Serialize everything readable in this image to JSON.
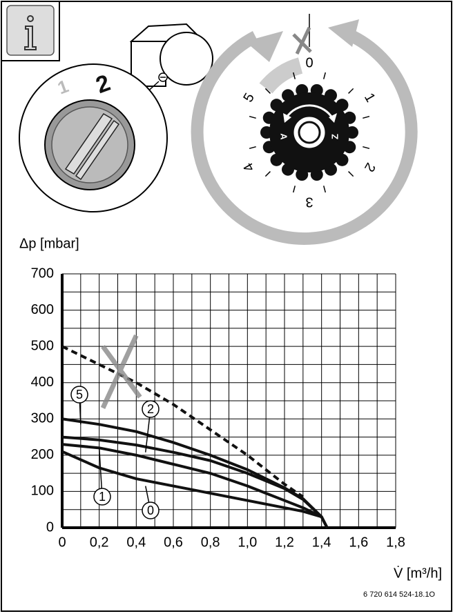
{
  "chart_data": {
    "type": "line",
    "y_label": "Δp [mbar]",
    "x_label": "V̇ [m³/h]",
    "x": [
      0,
      0.2,
      0.4,
      0.6,
      0.8,
      1.0,
      1.2,
      1.3,
      1.4,
      1.43
    ],
    "series": [
      {
        "name": "5",
        "color": "#111111",
        "values": [
          300,
          285,
          265,
          235,
          200,
          160,
          110,
          80,
          30,
          0
        ]
      },
      {
        "name": "2",
        "color": "#111111",
        "values": [
          250,
          242,
          228,
          208,
          185,
          150,
          108,
          78,
          30,
          0
        ]
      },
      {
        "name": "1",
        "color": "#111111",
        "values": [
          230,
          220,
          200,
          175,
          150,
          115,
          75,
          55,
          30,
          0
        ]
      },
      {
        "name": "0",
        "color": "#111111",
        "values": [
          210,
          165,
          135,
          115,
          95,
          75,
          55,
          45,
          30,
          0
        ]
      }
    ],
    "limit_line": {
      "color": "#111111",
      "style": "dashed",
      "values": [
        500,
        450,
        400,
        340,
        270,
        200,
        120,
        85,
        null,
        null
      ]
    },
    "xlim": [
      0,
      1.8
    ],
    "xticks": [
      0,
      {
        "value": 0.2,
        "label": "0,2"
      },
      {
        "value": 0.4,
        "label": "0,4"
      },
      {
        "value": 0.6,
        "label": "0,6"
      },
      {
        "value": 0.8,
        "label": "0,8"
      },
      {
        "value": 1.0,
        "label": "1,0"
      },
      {
        "value": 1.2,
        "label": "1,2"
      },
      {
        "value": 1.4,
        "label": "1,4"
      },
      {
        "value": 1.6,
        "label": "1,6"
      },
      {
        "value": 1.8,
        "label": "1,8"
      }
    ],
    "ylim": [
      0,
      700
    ],
    "yticks": [
      0,
      100,
      200,
      300,
      400,
      500,
      600,
      700
    ],
    "grid": true
  },
  "switch": {
    "positions": [
      "1",
      "2"
    ]
  },
  "dial": {
    "positions": [
      "0",
      "1",
      "2",
      "3",
      "4",
      "5"
    ],
    "directions": [
      "A",
      "Z"
    ]
  },
  "figure_id": "6 720 614 524-18.1O"
}
